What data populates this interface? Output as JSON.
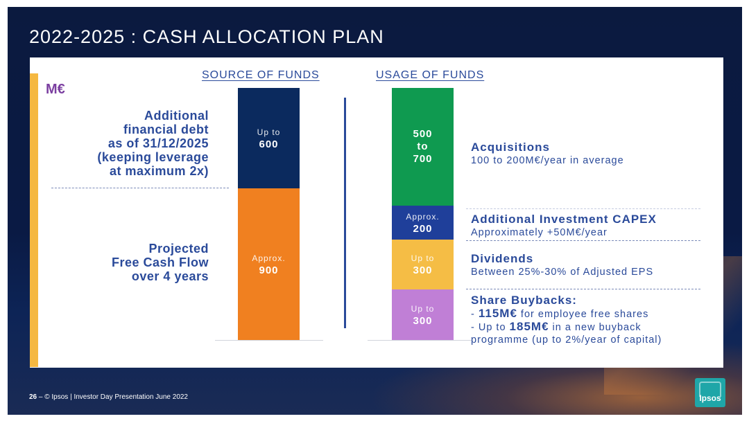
{
  "slide": {
    "title": "2022-2025 : CASH ALLOCATION PLAN",
    "unit": "M€"
  },
  "source": {
    "heading": "SOURCE OF FUNDS",
    "debt_label": [
      "Additional",
      "financial debt",
      "as of 31/12/2025",
      "(keeping leverage",
      "at maximum 2x)"
    ],
    "fcf_label": [
      "Projected",
      "Free Cash Flow",
      "over 4 years"
    ],
    "debt_bar": {
      "prefix": "Up to",
      "value": "600"
    },
    "fcf_bar": {
      "prefix": "Approx.",
      "value": "900"
    }
  },
  "usage": {
    "heading": "USAGE OF FUNDS",
    "bars": {
      "acq": [
        "500",
        "to",
        "700"
      ],
      "capex": {
        "prefix": "Approx.",
        "value": "200"
      },
      "div": {
        "prefix": "Up to",
        "value": "300"
      },
      "buyback": {
        "prefix": "Up to",
        "value": "300"
      }
    },
    "items": {
      "acq_title": "Acquisitions",
      "acq_sub": "100 to 200M€/year in average",
      "capex_title": "Additional Investment CAPEX",
      "capex_sub": "Approximately +50M€/year",
      "div_title": "Dividends",
      "div_sub": "Between 25%-30% of Adjusted EPS",
      "bb_title": "Share Buybacks:",
      "bb_line1_pre": "- ",
      "bb_line1_bold": "115M€",
      "bb_line1_post": " for employee free shares",
      "bb_line2_pre": "- Up to ",
      "bb_line2_bold": "185M€",
      "bb_line2_post": " in a new buyback",
      "bb_line3": "programme (up to 2%/year of capital)"
    }
  },
  "colors": {
    "navy": "#0b2a5e",
    "orange": "#f08020",
    "green": "#0f9a50",
    "blue": "#1f3f9a",
    "yellow": "#f5bd45",
    "lilac": "#c07fd6",
    "accent": "#f5b841"
  },
  "footer": {
    "page": "26",
    "dash": " – ",
    "text": "© Ipsos | Investor Day Presentation June 2022"
  },
  "logo": {
    "text": "Ipsos"
  }
}
